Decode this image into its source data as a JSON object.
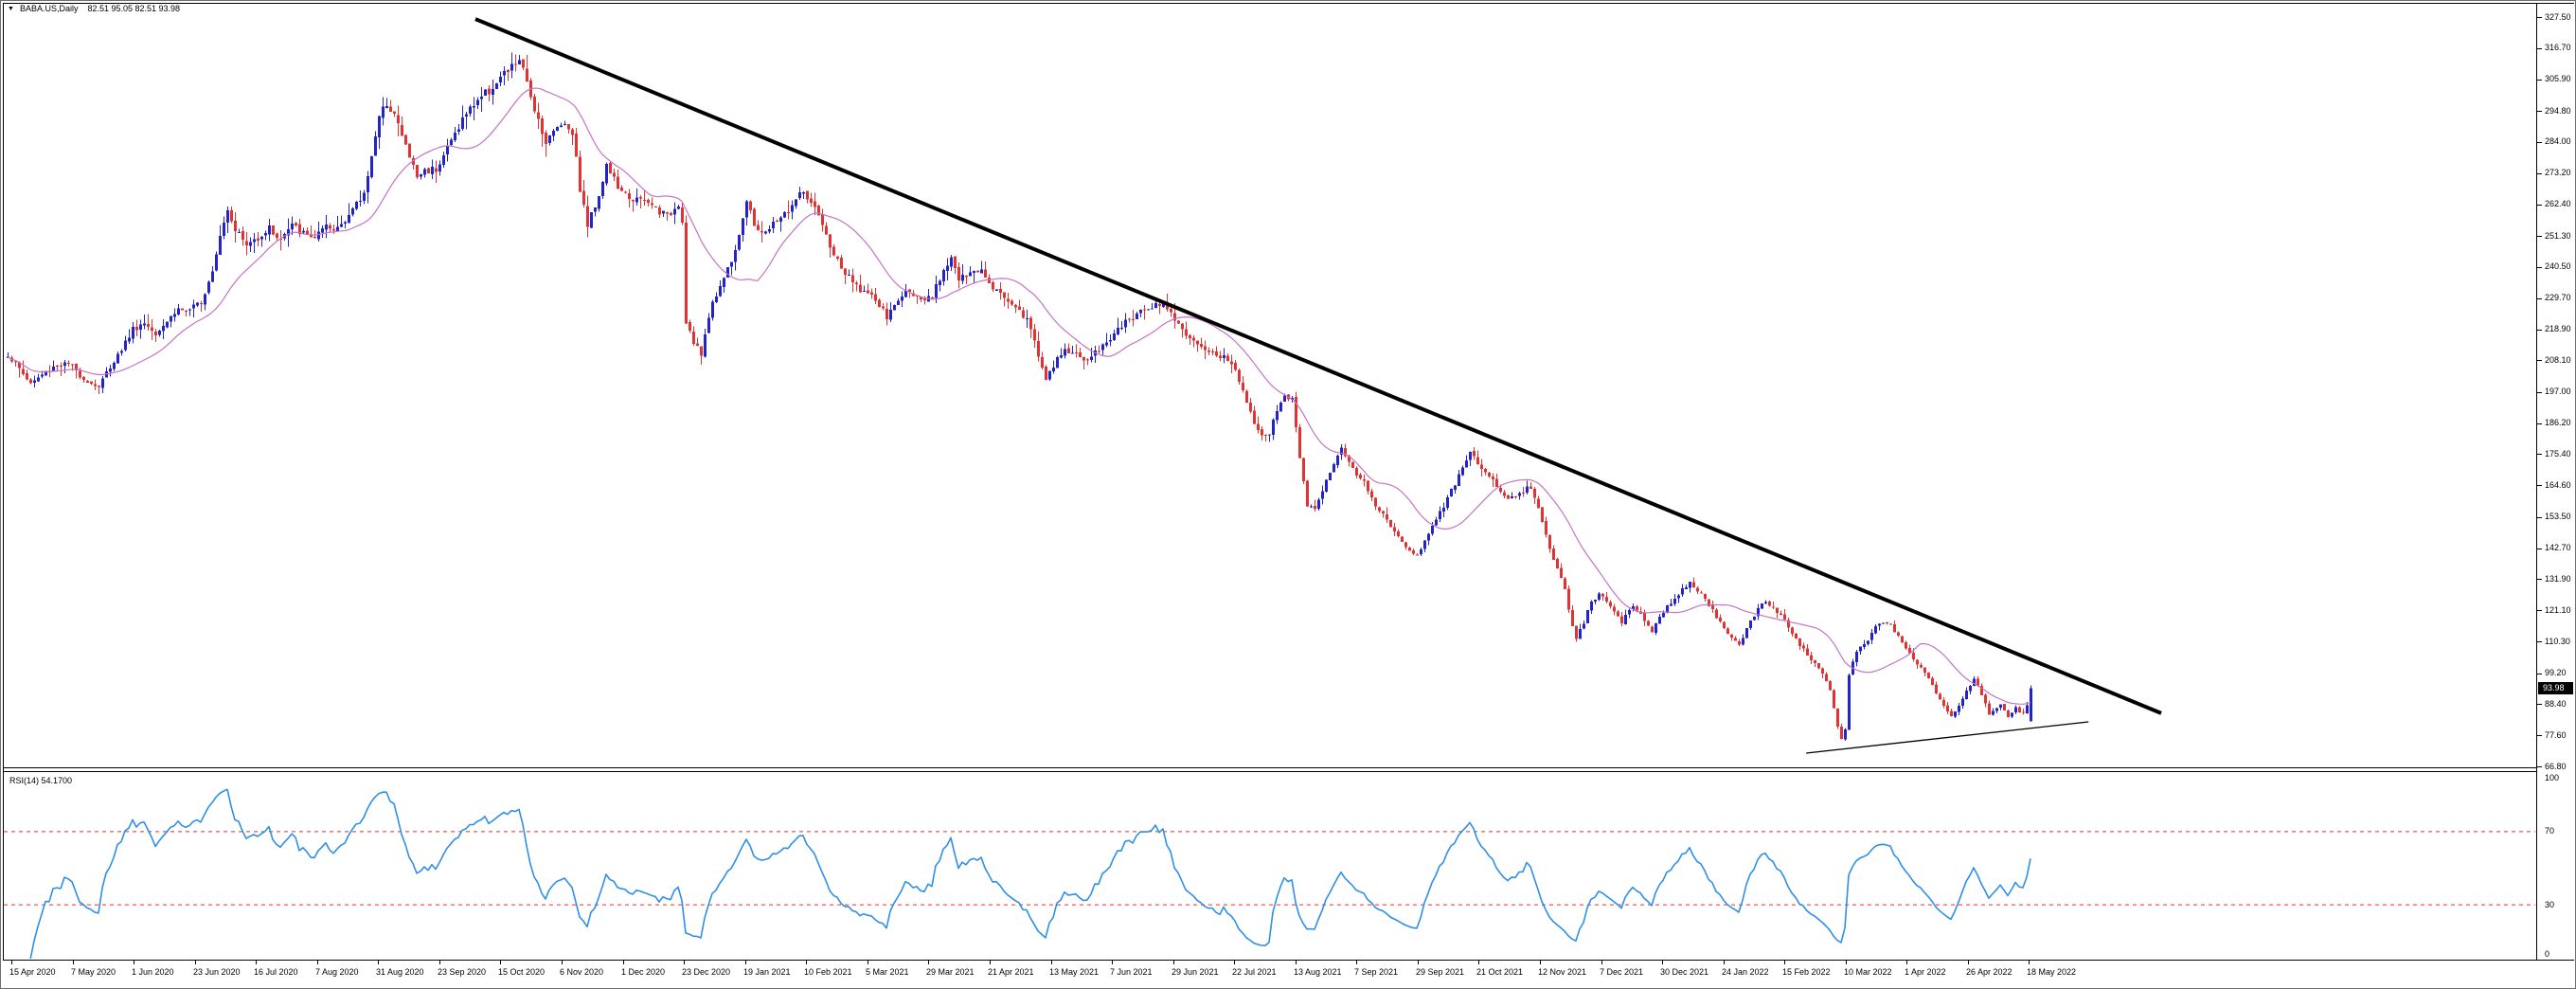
{
  "window": {
    "dropdown_arrow": "▼",
    "title": "BABA.US,Daily",
    "ohlc_readout": "82.51 95.05 82.51 93.98"
  },
  "colors": {
    "bull": "#2323CB",
    "bear": "#E03434",
    "ma_line": "#C673C6",
    "rsi_line": "#2E8FE8",
    "rsi_level": "#E03030",
    "trendline": "#000000",
    "badge_bg": "#000000",
    "badge_text": "#FFFFFF",
    "background": "#FFFFFF",
    "frame": "#000000"
  },
  "chart_data": {
    "type": "candlestick",
    "symbol": "BABA.US",
    "timeframe": "Daily",
    "title": "BABA.US,Daily 82.51 95.05 82.51 93.98",
    "last_candle": {
      "open": 82.51,
      "high": 95.05,
      "low": 82.51,
      "close": 93.98
    },
    "current_price_label": "93.98",
    "num_candles": 535,
    "y_axis": {
      "ticks": [
        327.5,
        316.7,
        305.9,
        294.8,
        284.0,
        273.2,
        262.4,
        251.3,
        240.5,
        229.7,
        218.9,
        208.1,
        197.0,
        186.2,
        175.4,
        164.6,
        153.5,
        142.7,
        131.9,
        121.1,
        110.3,
        99.2,
        88.4,
        77.6,
        66.8
      ]
    },
    "x_axis": {
      "labels": [
        "15 Apr 2020",
        "7 May 2020",
        "1 Jun 2020",
        "23 Jun 2020",
        "16 Jul 2020",
        "7 Aug 2020",
        "31 Aug 2020",
        "23 Sep 2020",
        "15 Oct 2020",
        "6 Nov 2020",
        "1 Dec 2020",
        "23 Dec 2020",
        "19 Jan 2021",
        "10 Feb 2021",
        "5 Mar 2021",
        "29 Mar 2021",
        "21 Apr 2021",
        "13 May 2021",
        "7 Jun 2021",
        "29 Jun 2021",
        "22 Jul 2021",
        "13 Aug 2021",
        "7 Sep 2021",
        "29 Sep 2021",
        "21 Oct 2021",
        "12 Nov 2021",
        "7 Dec 2021",
        "30 Dec 2021",
        "24 Jan 2022",
        "15 Feb 2022",
        "10 Mar 2022",
        "1 Apr 2022",
        "26 Apr 2022",
        "18 May 2022"
      ]
    },
    "close_path": [
      [
        0,
        210
      ],
      [
        3,
        205
      ],
      [
        6,
        200
      ],
      [
        9,
        203
      ],
      [
        12,
        206
      ],
      [
        16,
        207
      ],
      [
        19,
        203
      ],
      [
        22,
        200
      ],
      [
        24,
        199
      ],
      [
        27,
        206
      ],
      [
        30,
        212
      ],
      [
        33,
        219
      ],
      [
        36,
        221
      ],
      [
        39,
        218
      ],
      [
        42,
        222
      ],
      [
        45,
        226
      ],
      [
        48,
        225
      ],
      [
        51,
        229
      ],
      [
        52,
        232
      ],
      [
        54,
        240
      ],
      [
        56,
        252
      ],
      [
        58,
        261
      ],
      [
        60,
        254
      ],
      [
        63,
        248
      ],
      [
        66,
        251
      ],
      [
        69,
        254
      ],
      [
        72,
        250
      ],
      [
        75,
        255
      ],
      [
        78,
        252
      ],
      [
        81,
        251
      ],
      [
        84,
        254
      ],
      [
        86,
        253
      ],
      [
        88,
        256
      ],
      [
        90,
        259
      ],
      [
        92,
        262
      ],
      [
        94,
        266
      ],
      [
        96,
        280
      ],
      [
        98,
        292
      ],
      [
        100,
        298
      ],
      [
        102,
        294
      ],
      [
        104,
        286
      ],
      [
        106,
        279
      ],
      [
        108,
        272
      ],
      [
        110,
        274
      ],
      [
        113,
        275
      ],
      [
        116,
        282
      ],
      [
        120,
        292
      ],
      [
        124,
        299
      ],
      [
        127,
        302
      ],
      [
        130,
        306
      ],
      [
        133,
        310
      ],
      [
        135,
        313
      ],
      [
        137,
        304
      ],
      [
        139,
        296
      ],
      [
        142,
        284
      ],
      [
        146,
        291
      ],
      [
        149,
        288
      ],
      [
        151,
        268
      ],
      [
        153,
        255
      ],
      [
        156,
        266
      ],
      [
        158,
        276
      ],
      [
        162,
        266
      ],
      [
        166,
        264
      ],
      [
        170,
        262
      ],
      [
        174,
        258
      ],
      [
        177,
        263
      ],
      [
        178,
        256
      ],
      [
        179,
        222
      ],
      [
        181,
        214
      ],
      [
        183,
        210
      ],
      [
        185,
        224
      ],
      [
        187,
        231
      ],
      [
        190,
        240
      ],
      [
        192,
        247
      ],
      [
        194,
        258
      ],
      [
        195,
        263
      ],
      [
        197,
        255
      ],
      [
        200,
        252
      ],
      [
        203,
        257
      ],
      [
        206,
        260
      ],
      [
        208,
        264
      ],
      [
        210,
        267
      ],
      [
        212,
        262
      ],
      [
        214,
        258
      ],
      [
        216,
        251
      ],
      [
        218,
        245
      ],
      [
        220,
        240
      ],
      [
        223,
        235
      ],
      [
        226,
        232
      ],
      [
        229,
        229
      ],
      [
        232,
        223
      ],
      [
        235,
        229
      ],
      [
        238,
        233
      ],
      [
        241,
        228
      ],
      [
        244,
        230
      ],
      [
        247,
        240
      ],
      [
        249,
        244
      ],
      [
        251,
        236
      ],
      [
        254,
        238
      ],
      [
        257,
        240
      ],
      [
        260,
        234
      ],
      [
        263,
        230
      ],
      [
        266,
        227
      ],
      [
        269,
        222
      ],
      [
        271,
        215
      ],
      [
        274,
        201
      ],
      [
        276,
        206
      ],
      [
        279,
        212
      ],
      [
        282,
        210
      ],
      [
        285,
        208
      ],
      [
        288,
        212
      ],
      [
        291,
        216
      ],
      [
        294,
        220
      ],
      [
        297,
        223
      ],
      [
        300,
        226
      ],
      [
        303,
        228
      ],
      [
        306,
        227
      ],
      [
        309,
        221
      ],
      [
        312,
        215
      ],
      [
        315,
        212
      ],
      [
        318,
        211
      ],
      [
        321,
        209
      ],
      [
        323,
        207
      ],
      [
        326,
        198
      ],
      [
        329,
        187
      ],
      [
        331,
        181
      ],
      [
        333,
        183
      ],
      [
        335,
        190
      ],
      [
        337,
        196
      ],
      [
        339,
        194
      ],
      [
        341,
        175
      ],
      [
        343,
        158
      ],
      [
        345,
        156
      ],
      [
        347,
        163
      ],
      [
        350,
        172
      ],
      [
        352,
        178
      ],
      [
        355,
        170
      ],
      [
        358,
        166
      ],
      [
        361,
        158
      ],
      [
        364,
        152
      ],
      [
        367,
        147
      ],
      [
        370,
        142
      ],
      [
        372,
        140
      ],
      [
        375,
        148
      ],
      [
        378,
        155
      ],
      [
        381,
        163
      ],
      [
        384,
        170
      ],
      [
        386,
        177
      ],
      [
        389,
        170
      ],
      [
        392,
        166
      ],
      [
        395,
        161
      ],
      [
        398,
        160
      ],
      [
        401,
        164
      ],
      [
        403,
        161
      ],
      [
        405,
        152
      ],
      [
        407,
        142
      ],
      [
        409,
        136
      ],
      [
        411,
        128
      ],
      [
        413,
        115
      ],
      [
        414,
        111
      ],
      [
        416,
        117
      ],
      [
        418,
        124
      ],
      [
        420,
        127
      ],
      [
        423,
        122
      ],
      [
        426,
        117
      ],
      [
        429,
        123
      ],
      [
        432,
        118
      ],
      [
        434,
        114
      ],
      [
        436,
        119
      ],
      [
        439,
        124
      ],
      [
        441,
        127
      ],
      [
        444,
        131
      ],
      [
        448,
        125
      ],
      [
        452,
        117
      ],
      [
        455,
        111
      ],
      [
        457,
        109
      ],
      [
        460,
        117
      ],
      [
        463,
        124
      ],
      [
        466,
        122
      ],
      [
        469,
        118
      ],
      [
        473,
        109
      ],
      [
        476,
        104
      ],
      [
        479,
        99
      ],
      [
        481,
        93
      ],
      [
        482,
        87
      ],
      [
        483,
        81
      ],
      [
        484,
        76
      ],
      [
        485,
        80
      ],
      [
        486,
        99
      ],
      [
        488,
        107
      ],
      [
        491,
        111
      ],
      [
        494,
        117
      ],
      [
        497,
        116
      ],
      [
        500,
        110
      ],
      [
        502,
        106
      ],
      [
        505,
        101
      ],
      [
        508,
        95
      ],
      [
        511,
        88
      ],
      [
        513,
        84
      ],
      [
        515,
        88
      ],
      [
        517,
        93
      ],
      [
        519,
        97
      ],
      [
        521,
        92
      ],
      [
        523,
        85
      ],
      [
        526,
        88
      ],
      [
        528,
        84
      ],
      [
        530,
        87
      ],
      [
        532,
        85
      ],
      [
        533,
        88
      ],
      [
        534,
        93.98
      ]
    ],
    "overlays": {
      "ma_period": 20
    },
    "indicator": {
      "name": "RSI",
      "period": 14,
      "value": 54.17,
      "display_label": "RSI(14) 54.1700",
      "levels": [
        70,
        30
      ],
      "range": [
        0,
        100
      ],
      "axis_labels": [
        100,
        70,
        30,
        0
      ]
    },
    "trendlines": [
      {
        "name": "descending-resistance",
        "from": {
          "index": 123.5,
          "price": 326.8
        },
        "to": {
          "index": 568.5,
          "price": 85.3
        },
        "thickness": 4
      },
      {
        "name": "ascending-support",
        "from": {
          "index": 474.8,
          "price": 71.4
        },
        "to": {
          "index": 549.3,
          "price": 82.3
        },
        "thickness": 1.3
      }
    ]
  }
}
